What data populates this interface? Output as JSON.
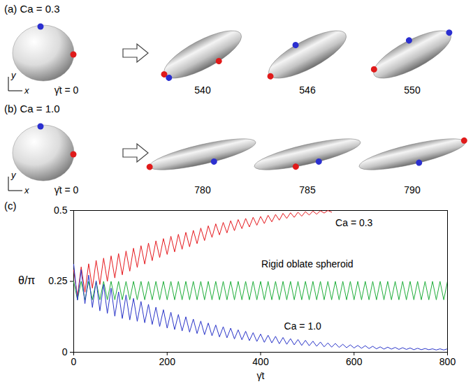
{
  "panels": [
    {
      "label": "(a) Ca = 0.3",
      "start_label": "γ̇t = 0",
      "times": [
        540,
        546,
        550
      ]
    },
    {
      "label": "(b) Ca = 1.0",
      "start_label": "γ̇t = 0",
      "times": [
        780,
        785,
        790
      ]
    }
  ],
  "frame_axes": {
    "x": "x",
    "y": "y"
  },
  "chart_data": {
    "type": "line",
    "panel": "(c)",
    "x_label": "γ̇t",
    "y_label": "θ/π",
    "xlim": [
      0,
      800
    ],
    "ylim": [
      0,
      0.5
    ],
    "xticks": [
      0,
      200,
      400,
      600,
      800
    ],
    "yticks": [
      0,
      0.25,
      0.5
    ],
    "x": [
      0,
      8,
      16,
      24,
      32,
      40,
      48,
      56,
      64,
      72,
      80,
      88,
      96,
      104,
      112,
      120,
      128,
      136,
      144,
      152,
      160,
      168,
      176,
      184,
      192,
      200,
      208,
      216,
      224,
      232,
      240,
      248,
      256,
      264,
      272,
      280,
      288,
      296,
      304,
      312,
      320,
      328,
      336,
      344,
      352,
      360,
      368,
      376,
      384,
      392,
      400,
      408,
      416,
      424,
      432,
      440,
      448,
      456,
      464,
      472,
      480,
      488,
      496,
      504,
      512,
      520,
      528,
      536,
      544,
      552,
      560,
      568,
      576,
      584,
      592,
      600,
      608,
      616,
      624,
      632,
      640,
      648,
      656,
      664,
      672,
      680,
      688,
      696,
      704,
      712,
      720,
      728,
      736,
      744,
      752,
      760,
      768,
      776,
      784,
      792,
      800
    ],
    "series": [
      {
        "name": "Ca = 0.3",
        "color": "#e6191e",
        "label_x": 600,
        "label_y": 0.455,
        "values": [
          0.29,
          0.197,
          0.301,
          0.212,
          0.312,
          0.226,
          0.324,
          0.239,
          0.332,
          0.25,
          0.34,
          0.262,
          0.348,
          0.273,
          0.357,
          0.286,
          0.367,
          0.299,
          0.376,
          0.311,
          0.385,
          0.323,
          0.393,
          0.334,
          0.401,
          0.345,
          0.409,
          0.354,
          0.416,
          0.363,
          0.423,
          0.372,
          0.43,
          0.383,
          0.438,
          0.394,
          0.446,
          0.405,
          0.453,
          0.414,
          0.458,
          0.421,
          0.464,
          0.429,
          0.468,
          0.436,
          0.472,
          0.442,
          0.476,
          0.448,
          0.479,
          0.454,
          0.483,
          0.46,
          0.486,
          0.466,
          0.49,
          0.472,
          0.492,
          0.476,
          0.494,
          0.48,
          0.496,
          0.484,
          0.498,
          0.487,
          0.499,
          0.491,
          0.5,
          0.494,
          null,
          null,
          null,
          null,
          null,
          null,
          null,
          null,
          null,
          null,
          null,
          null,
          null,
          null,
          null,
          null,
          null,
          null,
          null,
          null,
          null,
          null,
          null,
          null,
          null,
          null,
          null,
          null,
          null,
          null,
          null
        ]
      },
      {
        "name": "Rigid oblate spheroid",
        "color": "#1fae3a",
        "label_x": 500,
        "label_y": 0.31,
        "values": [
          0.25,
          0.185,
          0.25,
          0.185,
          0.25,
          0.185,
          0.25,
          0.185,
          0.25,
          0.185,
          0.25,
          0.185,
          0.25,
          0.185,
          0.25,
          0.185,
          0.25,
          0.185,
          0.25,
          0.185,
          0.25,
          0.185,
          0.25,
          0.185,
          0.25,
          0.185,
          0.25,
          0.185,
          0.25,
          0.185,
          0.25,
          0.185,
          0.25,
          0.185,
          0.25,
          0.185,
          0.25,
          0.185,
          0.25,
          0.185,
          0.25,
          0.185,
          0.25,
          0.185,
          0.25,
          0.185,
          0.25,
          0.185,
          0.25,
          0.185,
          0.25,
          0.185,
          0.25,
          0.185,
          0.25,
          0.185,
          0.25,
          0.185,
          0.25,
          0.185,
          0.25,
          0.185,
          0.25,
          0.185,
          0.25,
          0.185,
          0.25,
          0.185,
          0.25,
          0.185,
          0.25,
          0.185,
          0.25,
          0.185,
          0.25,
          0.185,
          0.25,
          0.185,
          0.25,
          0.185,
          0.25,
          0.185,
          0.25,
          0.185,
          0.25,
          0.185,
          0.25,
          0.185,
          0.25,
          0.185,
          0.25,
          0.185,
          0.25,
          0.185,
          0.25,
          0.185,
          0.25,
          0.185,
          0.25,
          0.185,
          0.25
        ]
      },
      {
        "name": "Ca = 1.0",
        "color": "#2a35c9",
        "label_x": 490,
        "label_y": 0.09,
        "values": [
          0.31,
          0.184,
          0.291,
          0.171,
          0.272,
          0.158,
          0.252,
          0.146,
          0.239,
          0.137,
          0.226,
          0.127,
          0.213,
          0.119,
          0.202,
          0.114,
          0.19,
          0.109,
          0.179,
          0.104,
          0.169,
          0.098,
          0.159,
          0.091,
          0.15,
          0.085,
          0.141,
          0.08,
          0.133,
          0.075,
          0.125,
          0.071,
          0.117,
          0.066,
          0.11,
          0.062,
          0.103,
          0.058,
          0.096,
          0.054,
          0.09,
          0.051,
          0.085,
          0.047,
          0.079,
          0.044,
          0.074,
          0.041,
          0.069,
          0.038,
          0.064,
          0.035,
          0.06,
          0.033,
          0.056,
          0.03,
          0.052,
          0.028,
          0.048,
          0.026,
          0.045,
          0.024,
          0.042,
          0.023,
          0.039,
          0.021,
          0.036,
          0.019,
          0.033,
          0.018,
          0.031,
          0.017,
          0.028,
          0.016,
          0.026,
          0.015,
          0.024,
          0.014,
          0.023,
          0.013,
          0.021,
          0.012,
          0.019,
          0.011,
          0.018,
          0.011,
          0.017,
          0.01,
          0.016,
          0.01,
          0.015,
          0.009,
          0.014,
          0.009,
          0.013,
          0.009,
          0.012,
          0.008,
          0.012,
          0.008,
          0.012
        ]
      }
    ]
  }
}
